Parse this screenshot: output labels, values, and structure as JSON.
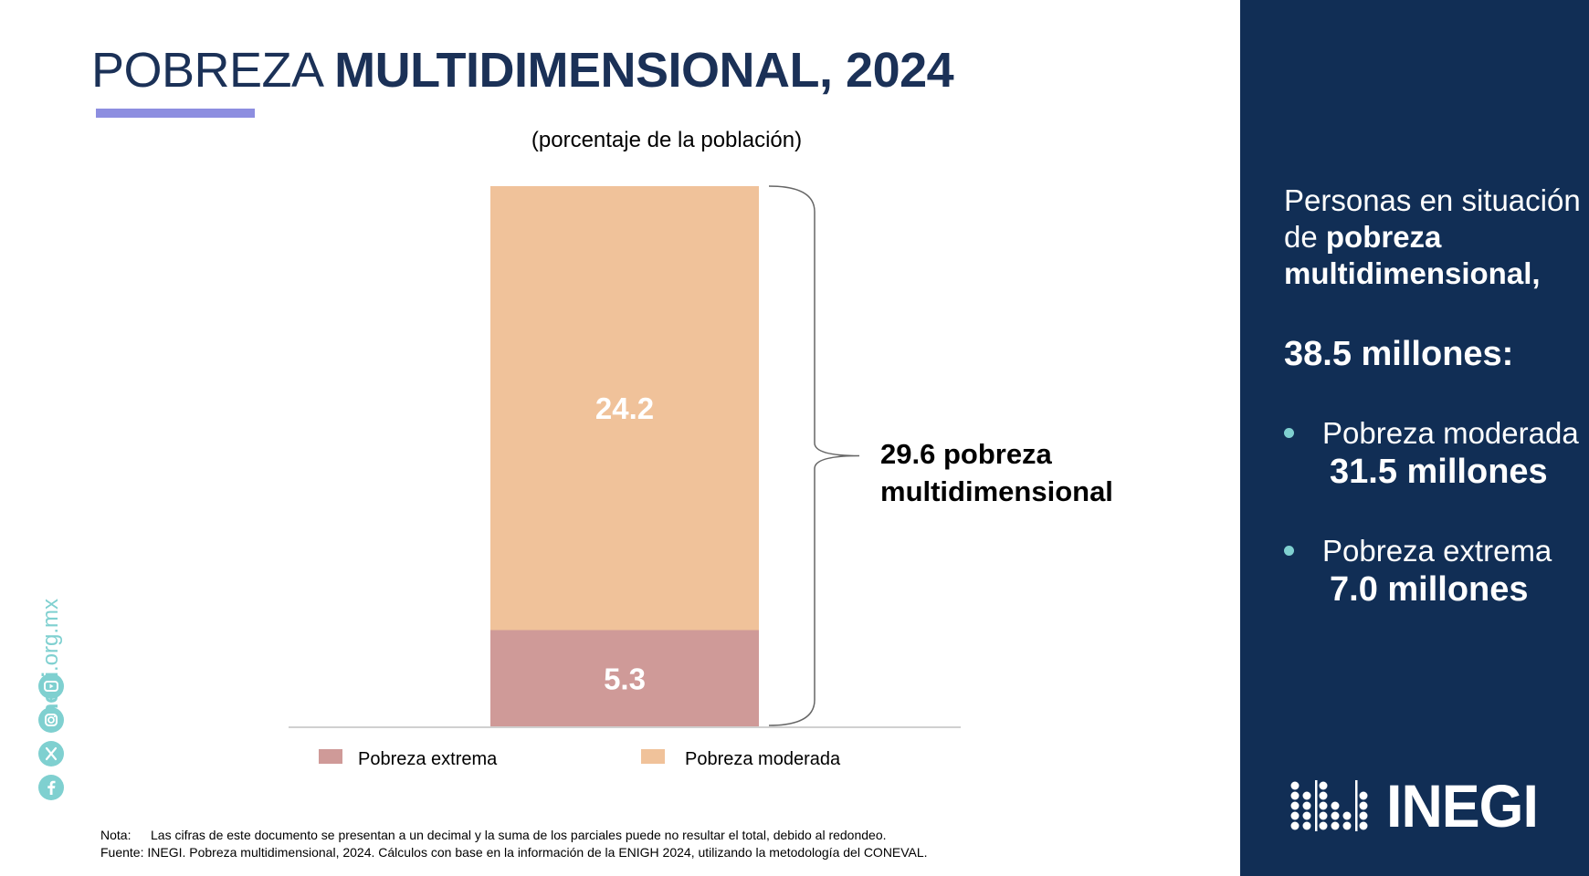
{
  "header": {
    "title_light": "POBREZA",
    "title_bold": "MULTIDIMENSIONAL, 2024",
    "accent_color": "#8d8ee0"
  },
  "chart_data": {
    "type": "bar",
    "stacked": true,
    "subtitle": "(porcentaje de la población)",
    "categories": [
      ""
    ],
    "series": [
      {
        "name": "Pobreza extrema",
        "values": [
          5.3
        ],
        "color": "#cf9a98"
      },
      {
        "name": "Pobreza moderada",
        "values": [
          24.2
        ],
        "color": "#f0c29a"
      }
    ],
    "value_labels": [
      "5.3",
      "24.2"
    ],
    "total_annotation": {
      "value": 29.6,
      "line1": "29.6 pobreza",
      "line2": "multidimensional"
    },
    "ylim": [
      0,
      29.6
    ],
    "grid": false,
    "legend_position": "bottom"
  },
  "footnotes": {
    "nota_label": "Nota:",
    "nota_text": "Las cifras de este documento se presentan a un decimal y la suma de los parciales puede no resultar el total, debido al redondeo.",
    "fuente_label": "Fuente:",
    "fuente_text": "INEGI. Pobreza multidimensional, 2024. Cálculos con base en la información de la ENIGH 2024, utilizando la metodología del CONEVAL."
  },
  "social": {
    "site_bold": "inegi",
    "site_rest": ".org.mx",
    "icons": [
      "youtube-icon",
      "instagram-icon",
      "x-icon",
      "facebook-icon"
    ],
    "color": "#7fd0d0"
  },
  "panel": {
    "background": "#112e55",
    "heading_prefix": "Personas en situación de ",
    "heading_bold": "pobreza multidimensional,",
    "total": "38.5 millones:",
    "items": [
      {
        "label": "Pobreza moderada",
        "value": "31.5 millones"
      },
      {
        "label": "Pobreza extrema",
        "value": "7.0 millones"
      }
    ],
    "logo_text": "INEGI"
  }
}
